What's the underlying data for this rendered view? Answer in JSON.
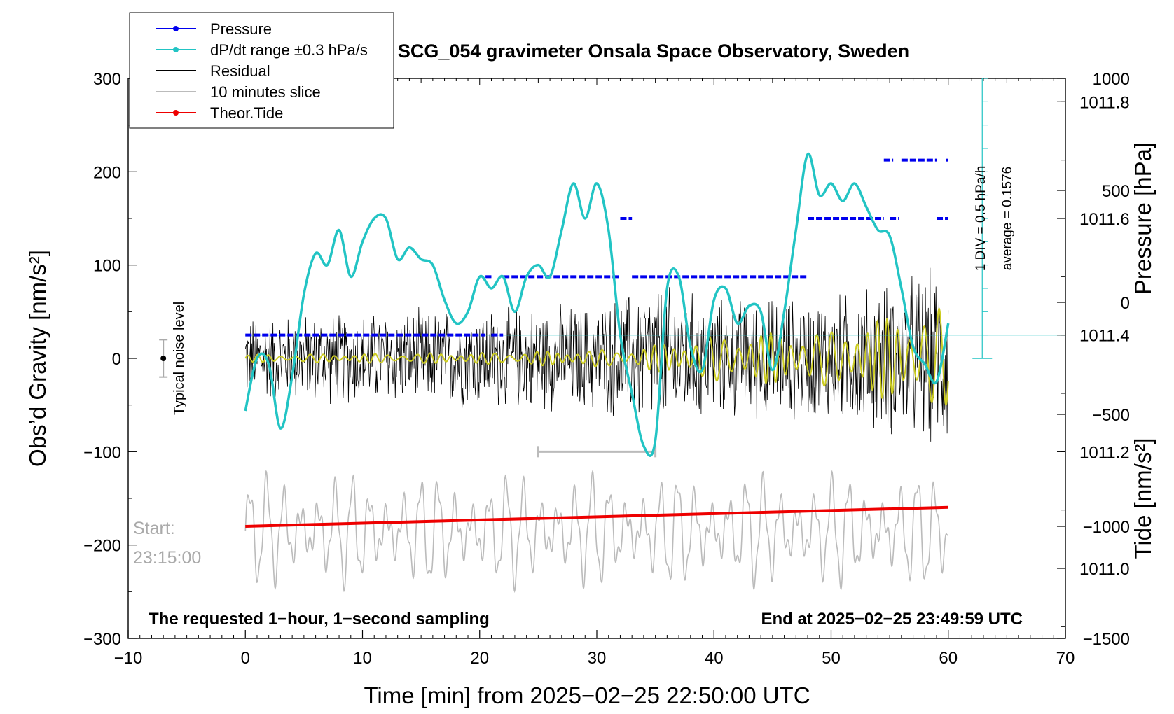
{
  "chart_data": {
    "type": "line",
    "title": "SCG_054 gravimeter Onsala Space Observatory, Sweden",
    "xlabel": "Time [min] from 2025−02−25 22:50:00 UTC",
    "ylabel_left": "Obs’d Gravity [nm/s²]",
    "ylabel_pressure": "Pressure [hPa]",
    "ylabel_tide": "Tide [nm/s²]",
    "xlim": [
      -10,
      70
    ],
    "ylim": [
      -300,
      300
    ],
    "x_ticks": [
      -10,
      0,
      10,
      20,
      30,
      40,
      50,
      60,
      70
    ],
    "x_tick_labels": [
      "−10",
      "0",
      "10",
      "20",
      "30",
      "40",
      "50",
      "60",
      "70"
    ],
    "y_ticks": [
      -300,
      -200,
      -100,
      0,
      100,
      200,
      300
    ],
    "y_tick_labels": [
      "−300",
      "−200",
      "−100",
      "0",
      "100",
      "200",
      "300"
    ],
    "pressure_axis": {
      "range": [
        1010.88,
        1011.84
      ],
      "ticks": [
        1011.0,
        1011.2,
        1011.4,
        1011.6,
        1011.8
      ],
      "tick_labels": [
        "1011.0",
        "1011.2",
        "1011.4",
        "1011.6",
        "1011.8"
      ]
    },
    "tide_axis": {
      "range": [
        -1500,
        1000
      ],
      "ticks": [
        -1500,
        -1000,
        -500,
        0,
        500,
        1000
      ],
      "tick_labels": [
        "−1500",
        "−1000",
        "−500",
        "0",
        "500",
        "1000"
      ]
    },
    "legend": {
      "position": "top-left",
      "entries": [
        {
          "label": "Pressure",
          "color": "#0000ee",
          "marker": true
        },
        {
          "label": "dP/dt range ±0.3 hPa/s",
          "color": "#22c4c4",
          "marker": true
        },
        {
          "label": "Residual",
          "color": "#000000",
          "marker": false
        },
        {
          "label": "10 minutes slice",
          "color": "#bbbbbb",
          "marker": false
        },
        {
          "label": "Theor.Tide",
          "color": "#ee0000",
          "marker": true
        }
      ]
    },
    "pressure_series": {
      "name": "Pressure",
      "color": "#0000ee",
      "segments": [
        {
          "x": [
            0,
            20.5
          ],
          "y": 1011.4
        },
        {
          "x": [
            21.0,
            22.0
          ],
          "y": 1011.4
        },
        {
          "x": [
            20.5,
            21.0
          ],
          "y": 1011.5
        },
        {
          "x": [
            22.0,
            32.0
          ],
          "y": 1011.5
        },
        {
          "x": [
            32.0,
            33.0
          ],
          "y": 1011.6
        },
        {
          "x": [
            33.0,
            48.0
          ],
          "y": 1011.5
        },
        {
          "x": [
            48.0,
            54.5
          ],
          "y": 1011.6
        },
        {
          "x": [
            55.0,
            55.8
          ],
          "y": 1011.6
        },
        {
          "x": [
            59.0,
            60.0
          ],
          "y": 1011.6
        },
        {
          "x": [
            54.5,
            55.3
          ],
          "y": 1011.7
        },
        {
          "x": [
            56.0,
            59.0
          ],
          "y": 1011.7
        },
        {
          "x": [
            59.8,
            60.0
          ],
          "y": 1011.7
        }
      ]
    },
    "dpdt_series": {
      "name": "dP/dt range ±0.3 hPa/s",
      "color": "#22c4c4",
      "x": [
        0,
        1,
        2,
        3,
        4,
        5,
        6,
        7,
        8,
        9,
        10,
        11,
        12,
        13,
        14,
        15,
        16,
        17,
        18,
        19,
        20,
        21,
        22,
        23,
        24,
        25,
        26,
        27,
        28,
        29,
        30,
        31,
        32,
        33,
        34,
        35,
        36,
        37,
        38,
        39,
        40,
        41,
        42,
        43,
        44,
        45,
        46,
        47,
        48,
        49,
        50,
        51,
        52,
        53,
        54,
        55,
        56,
        57,
        58,
        59,
        60
      ],
      "y": [
        1011.27,
        1011.36,
        1011.35,
        1011.24,
        1011.33,
        1011.47,
        1011.54,
        1011.52,
        1011.58,
        1011.5,
        1011.56,
        1011.6,
        1011.6,
        1011.53,
        1011.55,
        1011.53,
        1011.52,
        1011.46,
        1011.42,
        1011.44,
        1011.5,
        1011.48,
        1011.5,
        1011.44,
        1011.5,
        1011.52,
        1011.5,
        1011.58,
        1011.66,
        1011.6,
        1011.66,
        1011.58,
        1011.4,
        1011.3,
        1011.21,
        1011.22,
        1011.48,
        1011.5,
        1011.38,
        1011.34,
        1011.46,
        1011.48,
        1011.42,
        1011.45,
        1011.44,
        1011.34,
        1011.44,
        1011.58,
        1011.71,
        1011.64,
        1011.66,
        1011.63,
        1011.66,
        1011.62,
        1011.58,
        1011.57,
        1011.48,
        1011.38,
        1011.35,
        1011.32,
        1011.42
      ]
    },
    "residual_series": {
      "name": "Residual",
      "color": "#000000",
      "x_range": [
        0,
        60
      ],
      "envelope_nm_s2": [
        [
          0,
          50
        ],
        [
          10,
          55
        ],
        [
          20,
          60
        ],
        [
          30,
          65
        ],
        [
          35,
          90
        ],
        [
          40,
          70
        ],
        [
          50,
          75
        ],
        [
          60,
          110
        ]
      ]
    },
    "filtered_series": {
      "color": "#cccc22",
      "x_range": [
        0,
        60
      ],
      "envelope_nm_s2": [
        [
          0,
          4
        ],
        [
          20,
          6
        ],
        [
          33,
          10
        ],
        [
          40,
          25
        ],
        [
          50,
          30
        ],
        [
          55,
          45
        ],
        [
          60,
          55
        ]
      ]
    },
    "slice_series": {
      "name": "10 minutes slice",
      "color": "#bbbbbb",
      "x_range": [
        0,
        60
      ],
      "center_nm_s2": -185,
      "amplitude_nm_s2": 45,
      "slice_marker": {
        "x": [
          25,
          35
        ],
        "y": -100
      }
    },
    "tide_series": {
      "name": "Theor.Tide",
      "color": "#ee0000",
      "x": [
        0,
        60
      ],
      "y_nm_s2": [
        -1000,
        -915
      ]
    },
    "pressure_reference": {
      "average_label": "average = 0.1576",
      "div_label": "1 DIV = 0.5 hPa/h"
    },
    "annotations": {
      "noise_label": "Typical noise level",
      "start_label": "Start:",
      "start_time": "23:15:00",
      "footer_left": "The requested 1−hour, 1−second sampling",
      "footer_right": "End at 2025−02−25 23:49:59 UTC"
    }
  }
}
